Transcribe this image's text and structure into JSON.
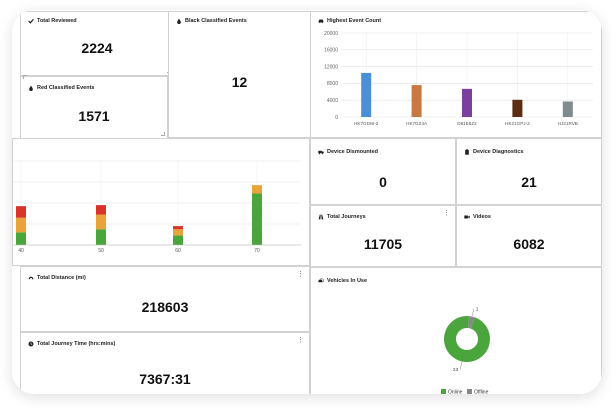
{
  "cards": {
    "total_reviewed": {
      "title": "Total Reviewed",
      "value": "2224"
    },
    "black_classified": {
      "title": "Black Classified Events",
      "value": "12"
    },
    "red_classified": {
      "title": "Red Classified Events",
      "value": "1571"
    },
    "highest_event": {
      "title": "Highest Event Count"
    },
    "device_dismounted": {
      "title": "Device Dismounted",
      "value": "0"
    },
    "device_diagnostics": {
      "title": "Device Diagnostics",
      "value": "21"
    },
    "total_journeys": {
      "title": "Total Journeys",
      "value": "11705"
    },
    "videos": {
      "title": "Videos",
      "value": "6082"
    },
    "total_distance": {
      "title": "Total Distance (mi)",
      "value": "218603"
    },
    "total_journey_time": {
      "title": "Total Journey Time (hrs:mins)",
      "value": "7367:31"
    },
    "vehicles_in_use": {
      "title": "Vehicles In Use"
    }
  },
  "icons": {
    "check": "check-icon",
    "drop": "drop-icon",
    "car": "car-icon",
    "truck": "truck-icon",
    "clipboard": "clipboard-icon",
    "road": "road-icon",
    "video": "video-camera-icon",
    "gauge": "gauge-icon",
    "clock": "clock-icon",
    "vehicles": "vehicles-icon"
  },
  "chart_data": [
    {
      "type": "bar",
      "title": "Highest Event Count",
      "categories": [
        "HK7GDW-2",
        "HK7GZ4A",
        "D81E6Z2",
        "HK21GPJ-2",
        "HJ21RVB"
      ],
      "values": [
        10500,
        7600,
        6700,
        4100,
        3700
      ],
      "colors": [
        "#4a90d9",
        "#c87941",
        "#7b3f9e",
        "#5c2d12",
        "#7f8c8d"
      ],
      "ylim": [
        0,
        20000
      ],
      "yticks": [
        "0",
        "4000",
        "8000",
        "12000",
        "16000",
        "20000"
      ],
      "grid": true
    },
    {
      "type": "bar",
      "stacked": true,
      "categories": [
        "40",
        "50",
        "60",
        "70"
      ],
      "series": [
        {
          "values": [
            12,
            15,
            9,
            49
          ]
        },
        {
          "values": [
            14,
            14,
            6,
            8
          ]
        },
        {
          "values": [
            11,
            9,
            3,
            0
          ]
        }
      ],
      "colors": [
        "#4aa53c",
        "#e8a33a",
        "#d9342b"
      ],
      "ylim": [
        0,
        80
      ],
      "grid": true
    },
    {
      "type": "pie",
      "title": "Vehicles In Use",
      "labels": [
        "Online",
        "Offline"
      ],
      "values": [
        23,
        1
      ],
      "data_labels": [
        "23",
        "1"
      ],
      "colors": [
        "#4aa53c",
        "#888888"
      ],
      "legend": "bottom"
    }
  ]
}
